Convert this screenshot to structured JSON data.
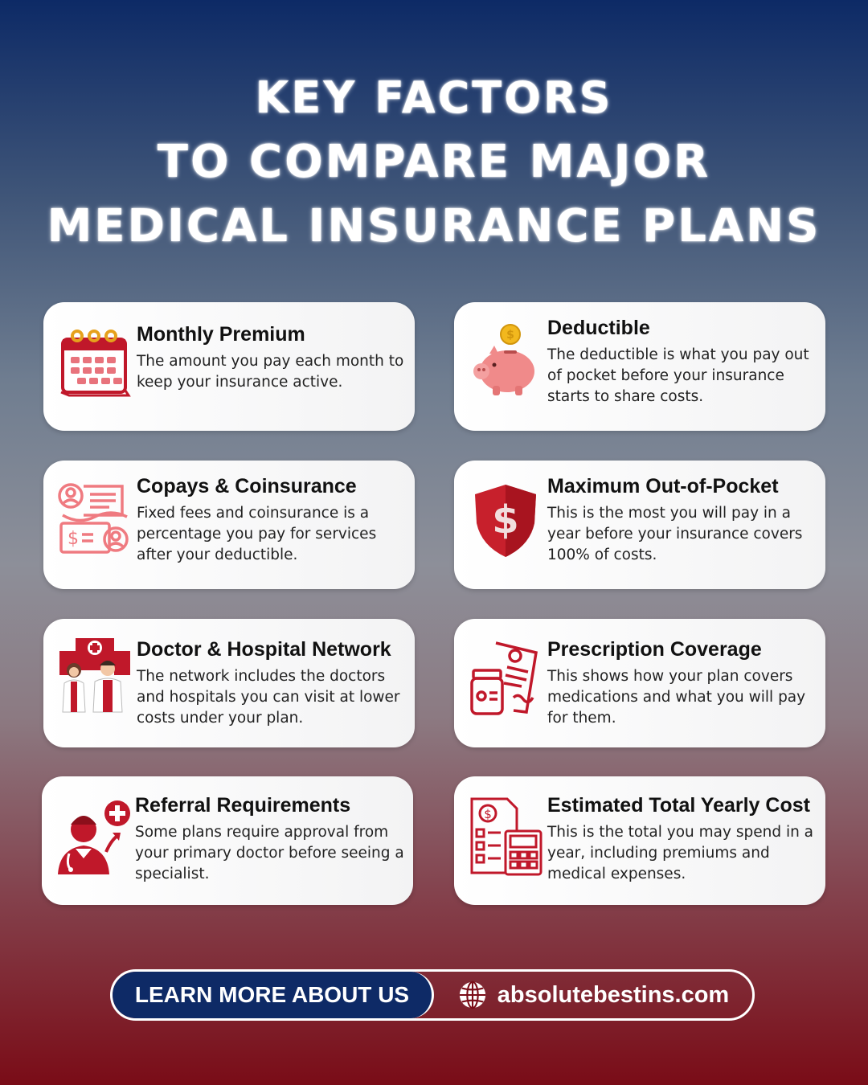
{
  "title": {
    "line1": "KEY FACTORS",
    "line2": "TO COMPARE MAJOR",
    "line3": "MEDICAL INSURANCE PLANS"
  },
  "colors": {
    "accent_red": "#c0182a",
    "navy": "#0e2a66",
    "card_bg": "#ffffff"
  },
  "cards": [
    {
      "title": "Monthly Premium",
      "desc": "The amount you pay each month to keep your insurance active.",
      "icon": "calendar-icon"
    },
    {
      "title": "Deductible",
      "desc": "The deductible is what you pay out of pocket before your insurance starts to share costs.",
      "icon": "piggy-bank-icon"
    },
    {
      "title": "Copays & Coinsurance",
      "desc": "Fixed fees and coinsurance is a percentage you pay for services after your deductible.",
      "icon": "invoice-icon"
    },
    {
      "title": "Maximum Out-of-Pocket",
      "desc": "This is the most you will pay in a year before your insurance covers 100% of costs.",
      "icon": "dollar-shield-icon"
    },
    {
      "title": "Doctor & Hospital Network",
      "desc": "The network includes the doctors and hospitals you can visit at lower costs under your plan.",
      "icon": "doctors-hospital-icon"
    },
    {
      "title": "Prescription Coverage",
      "desc": "This shows how your plan covers medications and what you will pay for them.",
      "icon": "prescription-icon"
    },
    {
      "title": "Referral Requirements",
      "desc": "Some plans require approval from your primary doctor before seeing a specialist.",
      "icon": "doctor-referral-icon"
    },
    {
      "title": "Estimated Total Yearly Cost",
      "desc": "This is the total you may spend in a year, including premiums and medical expenses.",
      "icon": "calculator-icon"
    }
  ],
  "cta": {
    "button_label": "LEARN MORE ABOUT US",
    "website": "absolutebestins.com",
    "icon": "globe-icon"
  }
}
